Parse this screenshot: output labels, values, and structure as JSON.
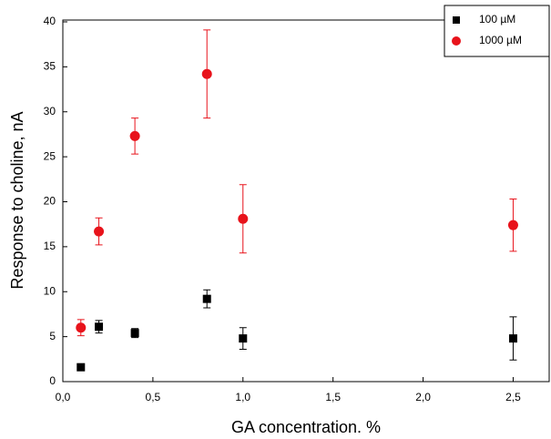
{
  "chart_data": {
    "type": "scatter",
    "x_label": "GA concentration. %",
    "y_label": "Response to choline, nA",
    "x": [
      0.1,
      0.2,
      0.4,
      0.8,
      1.0,
      2.5
    ],
    "series": [
      {
        "name": "100 µM",
        "color": "#000000",
        "marker": "square",
        "values": [
          1.6,
          6.1,
          5.4,
          9.2,
          4.8,
          4.8
        ],
        "errors": [
          0.2,
          0.7,
          0.5,
          1.0,
          1.2,
          2.4
        ]
      },
      {
        "name": "1000 µM",
        "color": "#e8131b",
        "marker": "circle",
        "values": [
          6.0,
          16.7,
          27.3,
          34.2,
          18.1,
          17.4
        ],
        "errors": [
          0.9,
          1.5,
          2.0,
          4.9,
          3.8,
          2.9
        ]
      }
    ],
    "xlim": [
      0,
      2.7
    ],
    "xticks": [
      {
        "value": 0,
        "label": "0,0"
      },
      {
        "value": 0.5,
        "label": "0,5"
      },
      {
        "value": 1.0,
        "label": "1,0"
      },
      {
        "value": 1.5,
        "label": "1,5"
      },
      {
        "value": 2.0,
        "label": "2,0"
      },
      {
        "value": 2.5,
        "label": "2,5"
      }
    ],
    "ylim": [
      0,
      40
    ],
    "yticks": [
      0,
      5,
      10,
      15,
      20,
      25,
      30,
      35,
      40
    ],
    "legend": "top-right",
    "grid": false
  }
}
